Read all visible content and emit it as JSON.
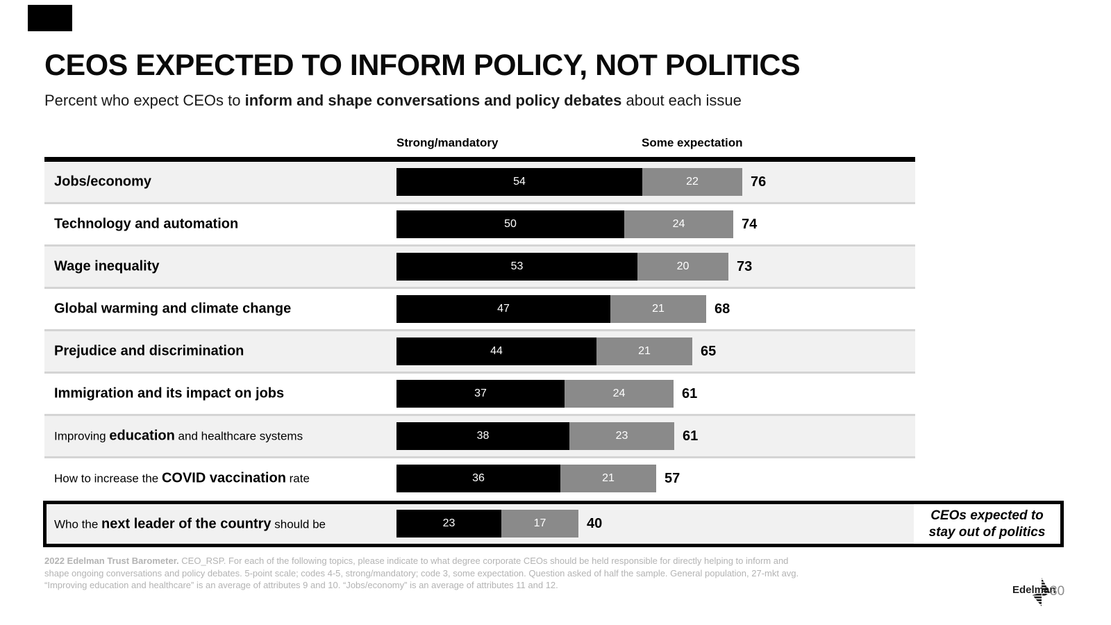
{
  "slide": {
    "title": "CEOS EXPECTED TO INFORM POLICY, NOT POLITICS",
    "subtitle_prefix": "Percent who expect CEOs to ",
    "subtitle_bold": "inform and shape conversations and policy debates",
    "subtitle_suffix": " about each issue",
    "brand": "Edelman",
    "page_number": "30"
  },
  "chart_data": {
    "type": "bar",
    "orientation": "horizontal",
    "stacked": true,
    "title": "CEOS EXPECTED TO INFORM POLICY, NOT POLITICS",
    "subtitle": "Percent who expect CEOs to inform and shape conversations and policy debates about each issue",
    "legend": [
      "Strong/mandatory",
      "Some expectation"
    ],
    "legend_position": "top",
    "grid": false,
    "value_range": [
      0,
      100
    ],
    "categories": [
      "Jobs/economy",
      "Technology and automation",
      "Wage inequality",
      "Global warming and climate change",
      "Prejudice and discrimination",
      "Immigration and its impact on jobs",
      "Improving education and healthcare systems",
      "How to increase the COVID vaccination rate",
      "Who the next leader of the country should be"
    ],
    "series": [
      {
        "name": "Strong/mandatory",
        "color": "#000000",
        "values": [
          54,
          50,
          53,
          47,
          44,
          37,
          38,
          36,
          23
        ]
      },
      {
        "name": "Some expectation",
        "color": "#8a8a8a",
        "values": [
          22,
          24,
          20,
          21,
          21,
          24,
          23,
          21,
          17
        ]
      }
    ],
    "totals": [
      76,
      74,
      73,
      68,
      65,
      61,
      61,
      57,
      40
    ],
    "annotation": "CEOs expected to stay out of politics",
    "label_runs": [
      [
        {
          "text": "Jobs/economy",
          "bold": true
        }
      ],
      [
        {
          "text": "Technology and automation",
          "bold": true
        }
      ],
      [
        {
          "text": "Wage inequality",
          "bold": true
        }
      ],
      [
        {
          "text": "Global warming and climate change",
          "bold": true
        }
      ],
      [
        {
          "text": "Prejudice and discrimination",
          "bold": true
        }
      ],
      [
        {
          "text": "Immigration and its impact on jobs",
          "bold": true
        }
      ],
      [
        {
          "text": "Improving ",
          "bold": false
        },
        {
          "text": "education",
          "bold": true
        },
        {
          "text": " and healthcare systems",
          "bold": false
        }
      ],
      [
        {
          "text": "How to increase the ",
          "bold": false
        },
        {
          "text": "COVID vaccination",
          "bold": true
        },
        {
          "text": " rate",
          "bold": false
        }
      ],
      [
        {
          "text": "Who the ",
          "bold": false
        },
        {
          "text": "next leader of the country",
          "bold": true
        },
        {
          "text": " should be",
          "bold": false
        }
      ]
    ]
  },
  "callout": {
    "line1": "CEOs expected to",
    "line2": "stay out of politics"
  },
  "footer": {
    "line1_bold": "2022 Edelman Trust Barometer.",
    "line1_rest": " CEO_RSP. For each of the following topics, please indicate to what degree corporate CEOs should be held responsible for directly helping to inform and",
    "line2": "shape ongoing conversations and policy debates. 5-point scale; codes 4-5, strong/mandatory; code 3, some expectation. Question asked of half the sample. General population, 27-mkt avg.",
    "line3": "“Improving education and healthcare” is an average of attributes 9 and 10. “Jobs/economy” is an average of attributes 11 and 12."
  },
  "colors": {
    "bar_strong": "#000000",
    "bar_some": "#8a8a8a",
    "row_stripe": "#f1f1f1",
    "row_divider": "#d4d4d4",
    "footer_text": "#b3b3b3"
  }
}
